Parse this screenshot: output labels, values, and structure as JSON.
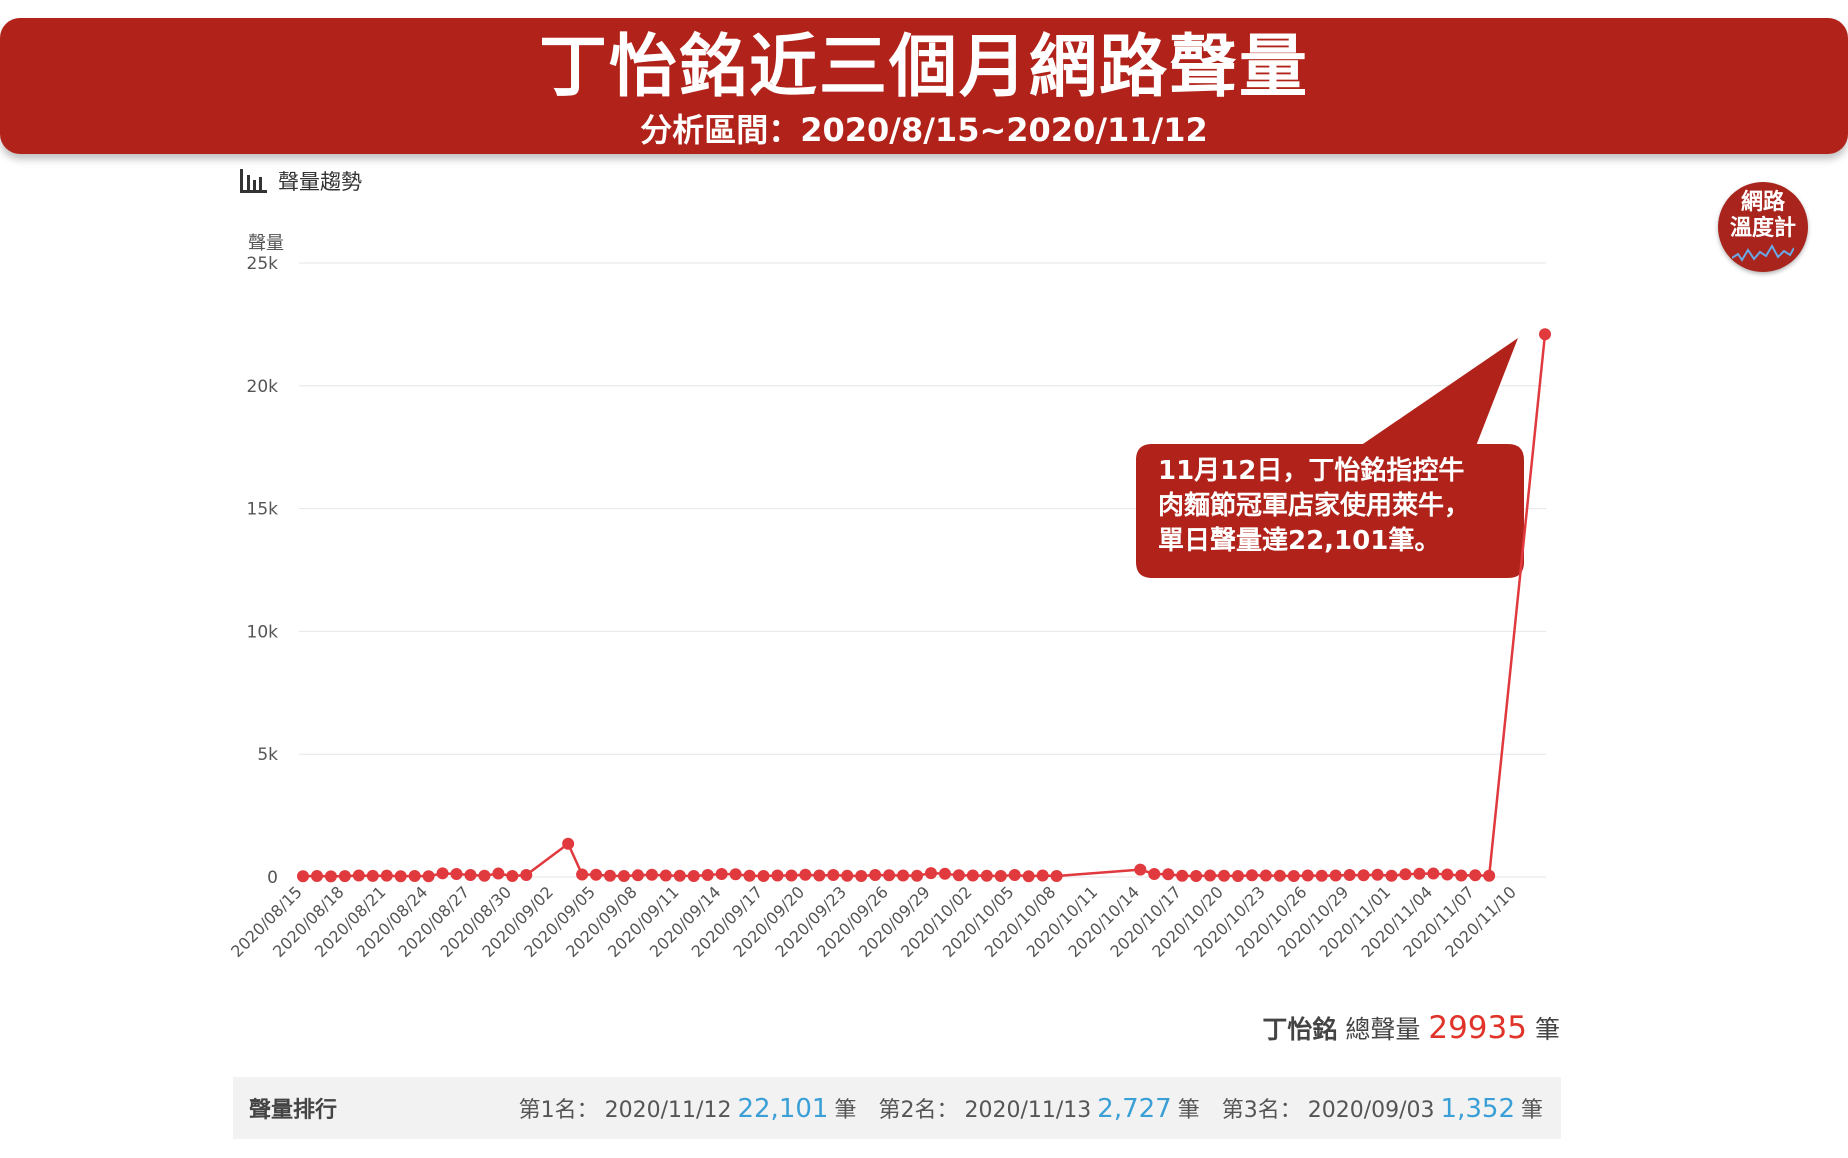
{
  "header": {
    "title": "丁怡銘近三個月網路聲量",
    "subtitle": "分析區間：2020/8/15~2020/11/12"
  },
  "section": {
    "title": "聲量趨勢"
  },
  "logo": {
    "line1": "網路",
    "line2": "溫度計"
  },
  "callout": {
    "line1": "11月12日，丁怡銘指控牛",
    "line2": "肉麵節冠軍店家使用萊牛，",
    "line3": "單日聲量達22,101筆。"
  },
  "chart_data": {
    "type": "line",
    "title": "",
    "ylabel": "聲量",
    "xlabel": "",
    "ylim": [
      0,
      25000
    ],
    "yticks": [
      0,
      5000,
      10000,
      15000,
      20000,
      25000
    ],
    "ytick_labels": [
      "0",
      "5k",
      "10k",
      "15k",
      "20k",
      "25k"
    ],
    "xtick_labels": [
      "2020/08/15",
      "2020/08/18",
      "2020/08/21",
      "2020/08/24",
      "2020/08/27",
      "2020/08/30",
      "2020/09/02",
      "2020/09/05",
      "2020/09/08",
      "2020/09/11",
      "2020/09/14",
      "2020/09/17",
      "2020/09/20",
      "2020/09/23",
      "2020/09/26",
      "2020/09/29",
      "2020/10/02",
      "2020/10/05",
      "2020/10/08",
      "2020/10/11",
      "2020/10/14",
      "2020/10/17",
      "2020/10/20",
      "2020/10/23",
      "2020/10/26",
      "2020/10/29",
      "2020/11/01",
      "2020/11/04",
      "2020/11/07",
      "2020/11/10"
    ],
    "grid": true,
    "legend": "none",
    "color": "#e0393e",
    "series": [
      {
        "values": [
          30,
          40,
          25,
          35,
          60,
          45,
          55,
          30,
          40,
          30,
          150,
          120,
          80,
          50,
          140,
          40,
          80,
          1352,
          100,
          90,
          50,
          40,
          70,
          90,
          60,
          50,
          40,
          80,
          120,
          110,
          50,
          40,
          60,
          60,
          90,
          60,
          80,
          50,
          40,
          80,
          70,
          60,
          50,
          160,
          130,
          70,
          60,
          50,
          40,
          80,
          30,
          60,
          40,
          300,
          120,
          110,
          50,
          40,
          60,
          50,
          40,
          70,
          60,
          50,
          40,
          60,
          50,
          60,
          80,
          70,
          90,
          50,
          110,
          130,
          140,
          100,
          60,
          70,
          50,
          22101
        ]
      }
    ],
    "x": [
      "2020/08/15",
      "2020/08/16",
      "2020/08/17",
      "2020/08/18",
      "2020/08/19",
      "2020/08/20",
      "2020/08/21",
      "2020/08/22",
      "2020/08/23",
      "2020/08/24",
      "2020/08/25",
      "2020/08/26",
      "2020/08/27",
      "2020/08/28",
      "2020/08/29",
      "2020/08/30",
      "2020/08/31",
      "2020/09/03",
      "2020/09/04",
      "2020/09/05",
      "2020/09/06",
      "2020/09/07",
      "2020/09/08",
      "2020/09/09",
      "2020/09/10",
      "2020/09/11",
      "2020/09/12",
      "2020/09/13",
      "2020/09/14",
      "2020/09/15",
      "2020/09/16",
      "2020/09/17",
      "2020/09/18",
      "2020/09/19",
      "2020/09/20",
      "2020/09/21",
      "2020/09/22",
      "2020/09/23",
      "2020/09/24",
      "2020/09/25",
      "2020/09/26",
      "2020/09/27",
      "2020/09/28",
      "2020/09/29",
      "2020/09/30",
      "2020/10/01",
      "2020/10/02",
      "2020/10/03",
      "2020/10/04",
      "2020/10/05",
      "2020/10/06",
      "2020/10/07",
      "2020/10/08",
      "2020/10/14",
      "2020/10/15",
      "2020/10/16",
      "2020/10/17",
      "2020/10/18",
      "2020/10/19",
      "2020/10/20",
      "2020/10/21",
      "2020/10/22",
      "2020/10/23",
      "2020/10/24",
      "2020/10/25",
      "2020/10/26",
      "2020/10/27",
      "2020/10/28",
      "2020/10/29",
      "2020/10/30",
      "2020/10/31",
      "2020/11/01",
      "2020/11/02",
      "2020/11/03",
      "2020/11/04",
      "2020/11/05",
      "2020/11/06",
      "2020/11/07",
      "2020/11/08",
      "2020/11/12"
    ]
  },
  "total": {
    "name": "丁怡銘",
    "label": "總聲量",
    "value": "29935",
    "unit": "筆"
  },
  "ranking": {
    "title": "聲量排行",
    "items": [
      {
        "rank": "第1名：",
        "date": "2020/11/12",
        "count": "22,101",
        "unit": "筆"
      },
      {
        "rank": "第2名：",
        "date": "2020/11/13",
        "count": "2,727",
        "unit": "筆"
      },
      {
        "rank": "第3名：",
        "date": "2020/09/03",
        "count": "1,352",
        "unit": "筆"
      }
    ]
  }
}
